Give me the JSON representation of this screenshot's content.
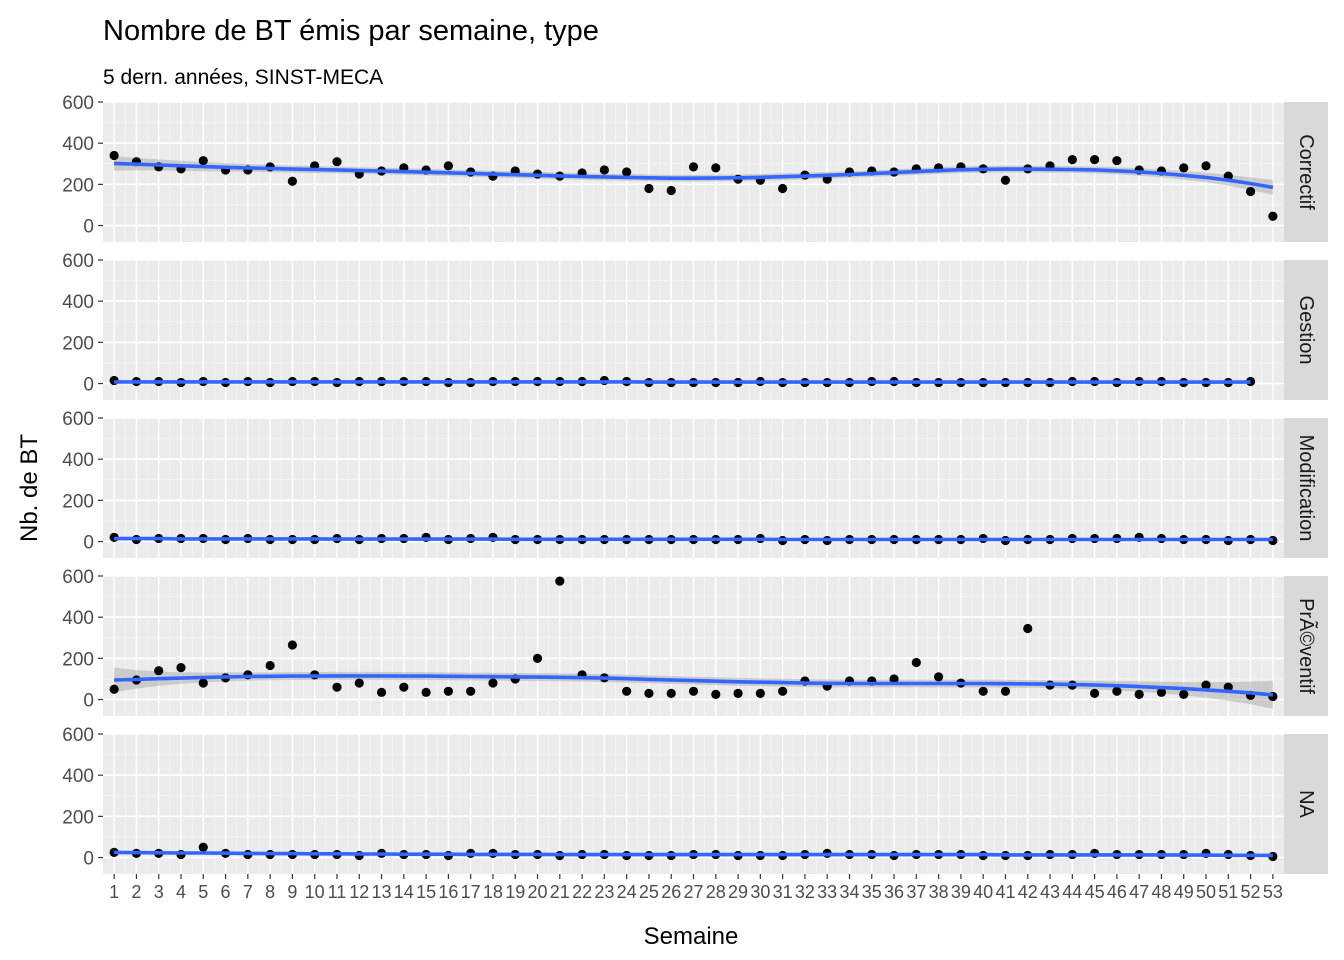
{
  "chart_data": {
    "type": "scatter",
    "title": "Nombre de BT émis par semaine, type",
    "subtitle": "5 dern. années, SINST-MECA",
    "xlabel": "Semaine",
    "ylabel": "Nb. de BT",
    "x": [
      1,
      2,
      3,
      4,
      5,
      6,
      7,
      8,
      9,
      10,
      11,
      12,
      13,
      14,
      15,
      16,
      17,
      18,
      19,
      20,
      21,
      22,
      23,
      24,
      25,
      26,
      27,
      28,
      29,
      30,
      31,
      32,
      33,
      34,
      35,
      36,
      37,
      38,
      39,
      40,
      41,
      42,
      43,
      44,
      45,
      46,
      47,
      48,
      49,
      50,
      51,
      52,
      53
    ],
    "x_tick_labels": [
      "1",
      "2",
      "3",
      "4",
      "5",
      "6",
      "7",
      "8",
      "9",
      "10",
      "11",
      "12",
      "13",
      "14",
      "15",
      "16",
      "17",
      "18",
      "19",
      "20",
      "21",
      "22",
      "23",
      "24",
      "25",
      "26",
      "27",
      "28",
      "29",
      "30",
      "31",
      "32",
      "33",
      "34",
      "35",
      "36",
      "37",
      "38",
      "39",
      "40",
      "41",
      "42",
      "43",
      "44",
      "45",
      "46",
      "47",
      "48",
      "49",
      "50",
      "51",
      "52",
      "53"
    ],
    "xlim": [
      0.5,
      53.5
    ],
    "ylim": [
      -80,
      600
    ],
    "y_ticks": [
      0,
      200,
      400,
      600
    ],
    "y_tick_labels": [
      "0",
      "200",
      "400",
      "600"
    ],
    "grid": true,
    "smoother": "loess with confidence band",
    "facets": [
      {
        "label": "Correctif",
        "values": [
          340,
          310,
          285,
          275,
          315,
          270,
          270,
          285,
          215,
          290,
          310,
          250,
          265,
          280,
          270,
          290,
          260,
          240,
          265,
          250,
          240,
          255,
          270,
          260,
          180,
          170,
          285,
          280,
          225,
          220,
          180,
          245,
          225,
          260,
          265,
          260,
          275,
          280,
          285,
          275,
          220,
          275,
          290,
          320,
          320,
          315,
          270,
          265,
          280,
          290,
          240,
          165,
          45
        ],
        "smooth": [
          302,
          298,
          294,
          290,
          286,
          283,
          280,
          277,
          274,
          272,
          270,
          267,
          265,
          262,
          259,
          256,
          253,
          250,
          247,
          244,
          241,
          238,
          236,
          234,
          232,
          230,
          230,
          231,
          232,
          234,
          237,
          240,
          244,
          248,
          252,
          257,
          262,
          267,
          271,
          273,
          274,
          274,
          273,
          272,
          270,
          266,
          260,
          253,
          244,
          234,
          220,
          204,
          185
        ],
        "band": [
          35,
          30,
          27,
          24,
          22,
          20,
          19,
          18,
          17,
          17,
          16,
          16,
          16,
          16,
          16,
          16,
          16,
          16,
          16,
          16,
          16,
          16,
          16,
          16,
          16,
          16,
          16,
          16,
          16,
          16,
          16,
          16,
          16,
          16,
          16,
          16,
          16,
          16,
          16,
          16,
          16,
          16,
          16,
          16,
          17,
          17,
          18,
          19,
          21,
          23,
          26,
          30,
          36
        ]
      },
      {
        "label": "Gestion",
        "values": [
          15,
          10,
          10,
          5,
          10,
          5,
          10,
          5,
          10,
          10,
          5,
          10,
          10,
          10,
          10,
          5,
          5,
          10,
          10,
          10,
          10,
          10,
          15,
          10,
          5,
          5,
          5,
          5,
          5,
          10,
          5,
          5,
          5,
          5,
          10,
          10,
          5,
          5,
          5,
          5,
          5,
          5,
          5,
          10,
          10,
          5,
          10,
          10,
          5,
          5,
          5,
          10,
          null
        ],
        "smooth": [
          8,
          8,
          8,
          8,
          8,
          8,
          8,
          8,
          8,
          8,
          8,
          8,
          8,
          8,
          8,
          8,
          8,
          8,
          8,
          8,
          8,
          8,
          8,
          8,
          7,
          7,
          7,
          7,
          7,
          7,
          7,
          7,
          7,
          7,
          7,
          7,
          7,
          7,
          7,
          7,
          7,
          7,
          7,
          7,
          7,
          7,
          7,
          7,
          7,
          7,
          7,
          7,
          null
        ],
        "band": [
          5,
          4,
          4,
          3,
          3,
          3,
          3,
          3,
          3,
          3,
          3,
          3,
          3,
          3,
          3,
          3,
          3,
          3,
          3,
          3,
          3,
          3,
          3,
          3,
          3,
          3,
          3,
          3,
          3,
          3,
          3,
          3,
          3,
          3,
          3,
          3,
          3,
          3,
          3,
          3,
          3,
          3,
          3,
          3,
          3,
          3,
          3,
          3,
          3,
          4,
          4,
          5,
          null
        ]
      },
      {
        "label": "Modification",
        "values": [
          20,
          10,
          15,
          15,
          15,
          10,
          15,
          10,
          10,
          10,
          15,
          10,
          15,
          15,
          20,
          10,
          15,
          20,
          10,
          10,
          10,
          10,
          10,
          10,
          10,
          10,
          10,
          10,
          10,
          15,
          5,
          10,
          5,
          10,
          10,
          10,
          10,
          10,
          10,
          15,
          5,
          10,
          10,
          15,
          15,
          15,
          20,
          15,
          10,
          10,
          5,
          10,
          5
        ],
        "smooth": [
          14,
          14,
          14,
          13,
          13,
          13,
          13,
          13,
          13,
          13,
          12,
          12,
          12,
          12,
          12,
          12,
          12,
          12,
          11,
          11,
          11,
          11,
          11,
          11,
          11,
          11,
          11,
          11,
          11,
          11,
          10,
          10,
          10,
          10,
          10,
          10,
          10,
          10,
          10,
          10,
          10,
          10,
          10,
          10,
          10,
          10,
          10,
          10,
          10,
          10,
          10,
          10,
          10
        ],
        "band": [
          6,
          5,
          5,
          4,
          4,
          4,
          4,
          4,
          4,
          4,
          4,
          4,
          4,
          4,
          4,
          4,
          4,
          4,
          4,
          4,
          4,
          4,
          4,
          4,
          4,
          4,
          4,
          4,
          4,
          4,
          4,
          4,
          4,
          4,
          4,
          4,
          4,
          4,
          4,
          4,
          4,
          4,
          4,
          4,
          4,
          4,
          4,
          4,
          4,
          4,
          5,
          5,
          6
        ]
      },
      {
        "label": "PrÃ©ventif",
        "values": [
          50,
          95,
          140,
          155,
          80,
          105,
          120,
          165,
          265,
          120,
          60,
          80,
          35,
          60,
          35,
          40,
          40,
          80,
          100,
          200,
          575,
          120,
          105,
          40,
          30,
          30,
          40,
          25,
          30,
          30,
          40,
          90,
          65,
          90,
          90,
          100,
          180,
          110,
          80,
          40,
          40,
          345,
          70,
          70,
          30,
          40,
          25,
          35,
          25,
          70,
          60,
          20,
          15
        ],
        "smooth": [
          95,
          98,
          101,
          104,
          107,
          110,
          112,
          113,
          114,
          114,
          115,
          115,
          115,
          114,
          114,
          113,
          112,
          111,
          110,
          109,
          108,
          106,
          104,
          101,
          98,
          95,
          92,
          89,
          86,
          84,
          82,
          80,
          79,
          78,
          78,
          78,
          78,
          78,
          78,
          78,
          77,
          76,
          75,
          73,
          70,
          67,
          63,
          58,
          53,
          47,
          40,
          32,
          23
        ],
        "band": [
          60,
          45,
          35,
          28,
          24,
          22,
          20,
          19,
          19,
          19,
          19,
          19,
          19,
          19,
          19,
          19,
          19,
          19,
          19,
          19,
          19,
          19,
          19,
          19,
          19,
          19,
          19,
          19,
          19,
          19,
          19,
          19,
          19,
          19,
          19,
          19,
          19,
          19,
          19,
          19,
          19,
          19,
          19,
          20,
          21,
          23,
          25,
          28,
          32,
          38,
          45,
          55,
          68
        ]
      },
      {
        "label": "NA",
        "values": [
          25,
          20,
          20,
          15,
          50,
          20,
          15,
          15,
          15,
          15,
          15,
          10,
          20,
          15,
          15,
          10,
          20,
          20,
          15,
          15,
          10,
          15,
          15,
          10,
          10,
          10,
          15,
          15,
          10,
          10,
          10,
          15,
          20,
          15,
          15,
          10,
          15,
          15,
          15,
          10,
          10,
          10,
          15,
          15,
          20,
          15,
          15,
          15,
          15,
          20,
          15,
          10,
          5
        ],
        "smooth": [
          25,
          24,
          23,
          22,
          22,
          21,
          20,
          19,
          19,
          18,
          18,
          17,
          17,
          16,
          16,
          16,
          15,
          15,
          15,
          15,
          14,
          14,
          14,
          14,
          14,
          14,
          14,
          14,
          14,
          14,
          14,
          14,
          14,
          14,
          14,
          14,
          14,
          14,
          14,
          14,
          13,
          13,
          13,
          13,
          13,
          13,
          13,
          13,
          12,
          12,
          11,
          11,
          10
        ],
        "band": [
          8,
          7,
          6,
          5,
          5,
          4,
          4,
          4,
          4,
          4,
          4,
          4,
          4,
          4,
          4,
          4,
          4,
          4,
          4,
          4,
          4,
          4,
          4,
          4,
          4,
          4,
          4,
          4,
          4,
          4,
          4,
          4,
          4,
          4,
          4,
          4,
          4,
          4,
          4,
          4,
          4,
          4,
          4,
          4,
          4,
          4,
          4,
          4,
          4,
          5,
          5,
          6,
          8
        ]
      }
    ]
  }
}
